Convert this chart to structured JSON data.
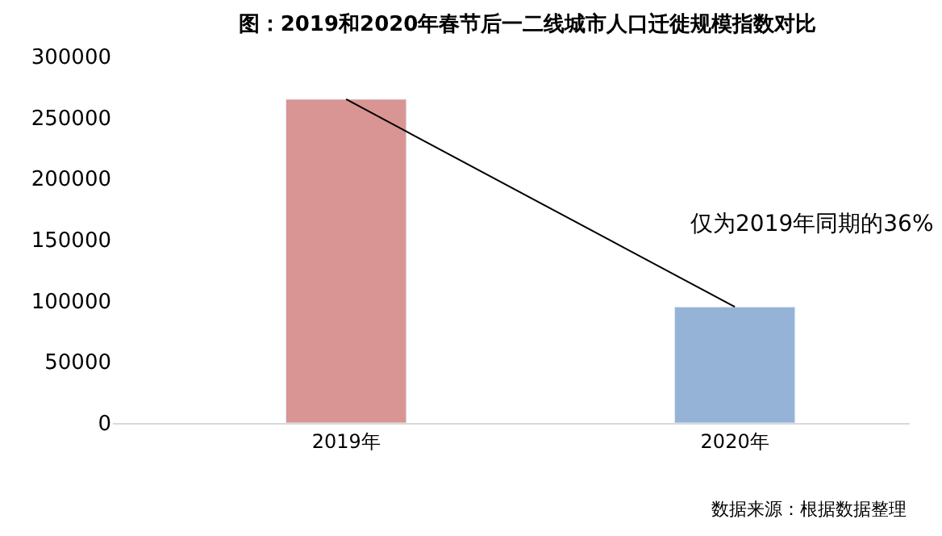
{
  "chart_data": {
    "type": "bar",
    "title": "图：2019和2020年春节后一二线城市人口迁徙规模指数对比",
    "categories": [
      "2019年",
      "2020年"
    ],
    "values": [
      265000,
      95000
    ],
    "colors": [
      "#d89594",
      "#95b3d7"
    ],
    "ylim": [
      0,
      300000
    ],
    "yticks": [
      0,
      50000,
      100000,
      150000,
      200000,
      250000,
      300000
    ],
    "legend": false,
    "annotations": [
      "仅为2019年同期的36%",
      "数据来源：根据数据整理"
    ]
  }
}
